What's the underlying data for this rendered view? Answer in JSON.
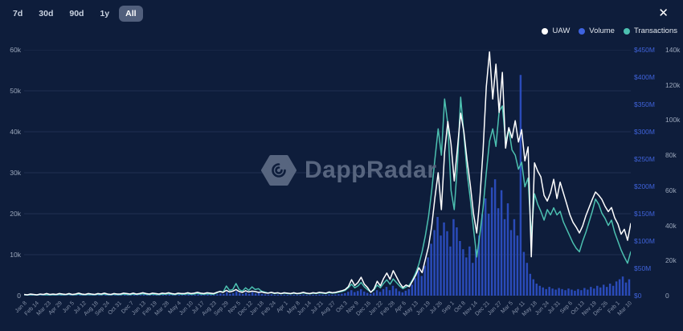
{
  "controls": {
    "ranges": [
      {
        "label": "7d",
        "selected": false
      },
      {
        "label": "30d",
        "selected": false
      },
      {
        "label": "90d",
        "selected": false
      },
      {
        "label": "1y",
        "selected": false
      },
      {
        "label": "All",
        "selected": true
      }
    ],
    "close_label": "✕"
  },
  "legend": {
    "items": [
      {
        "label": "UAW",
        "color": "#ffffff"
      },
      {
        "label": "Volume",
        "color": "#3e63e0"
      },
      {
        "label": "Transactions",
        "color": "#4cc0b0"
      }
    ]
  },
  "watermark": {
    "text": "DappRadar"
  },
  "colors": {
    "background": "#0e1d3b",
    "grid": "rgba(141,165,220,0.14)",
    "uaw_line": "#ffffff",
    "transactions_line": "#4cc0b0",
    "volume_bar": "#2c4fc4",
    "volume_axis_text": "#3f62d9",
    "axis_text": "#9aa6ba",
    "x_axis_text": "#8591a8"
  },
  "chart_data": {
    "type": "composite",
    "subtypes": [
      "bar",
      "line",
      "line"
    ],
    "x_labels": [
      "Jan 8",
      "Feb 14",
      "Mar 23",
      "Apr 29",
      "Jun 5",
      "Jul 12",
      "Aug 18",
      "Sep 24",
      "Oct 31",
      "Dec 7",
      "Jan 13",
      "Feb 19",
      "Mar 28",
      "May 4",
      "Jun 10",
      "Jul 17",
      "Aug 23",
      "Sep 29",
      "Nov 5",
      "Dec 12",
      "Jan 18",
      "Feb 24",
      "Apr 1",
      "May 8",
      "Jun 14",
      "Jul 21",
      "Aug 27",
      "Oct 3",
      "Nov 9",
      "Dec 16",
      "Jan 22",
      "Feb 28",
      "Apr 6",
      "May 13",
      "Jun 19",
      "Jul 26",
      "Sep 1",
      "Oct 8",
      "Nov 14",
      "Dec 21",
      "Jan 27",
      "Mar 5",
      "Apr 11",
      "May 18",
      "Jun 24",
      "Jul 31",
      "Sep 6",
      "Oct 13",
      "Nov 19",
      "Dec 26",
      "Feb 1",
      "Mar 10"
    ],
    "axes": {
      "left": {
        "name": "UAW",
        "ticks": [
          "0",
          "10k",
          "20k",
          "30k",
          "40k",
          "50k",
          "60k"
        ],
        "min": 0,
        "max": 60,
        "unit": "k users"
      },
      "right_volume": {
        "name": "Volume",
        "ticks": [
          "$0",
          "$50M",
          "$100M",
          "$150M",
          "$200M",
          "$250M",
          "$300M",
          "$350M",
          "$400M",
          "$450M"
        ],
        "min": 0,
        "max": 450,
        "unit": "$M"
      },
      "right_transactions": {
        "name": "Transactions",
        "ticks": [
          "0",
          "20k",
          "40k",
          "60k",
          "80k",
          "100k",
          "120k",
          "140k"
        ],
        "min": 0,
        "max": 140,
        "unit": "k tx"
      }
    },
    "grid": true,
    "legend_position": "top-right",
    "series": [
      {
        "name": "Volume",
        "type": "bar",
        "axis": "right_volume",
        "color": "#2c4fc4",
        "unit": "$M",
        "values": [
          0.5,
          0.3,
          0.8,
          0.5,
          0.4,
          1,
          0.6,
          0.8,
          0.5,
          0.7,
          0.6,
          1,
          0.7,
          0.5,
          1.2,
          0.6,
          0.8,
          1.4,
          0.8,
          0.6,
          1,
          0.7,
          0.5,
          1.2,
          0.8,
          1.5,
          0.8,
          0.6,
          1.2,
          0.8,
          0.8,
          1.5,
          1,
          0.8,
          1.6,
          1,
          1.2,
          2,
          1.2,
          0.8,
          1.4,
          1,
          0.8,
          1.6,
          1.2,
          2,
          1.2,
          0.9,
          1.6,
          1.2,
          1.2,
          2,
          1.3,
          1.5,
          2.4,
          1.5,
          1.2,
          2,
          1.5,
          1.3,
          2.5,
          4,
          3,
          6.5,
          3.5,
          4.5,
          8,
          4.5,
          3,
          6,
          3.5,
          6.5,
          4,
          5,
          3,
          2.5,
          2,
          2.5,
          1.6,
          2,
          1.4,
          1.8,
          1.5,
          1.2,
          1.8,
          1.4,
          1.5,
          2.2,
          1.5,
          1.2,
          1.8,
          1.5,
          2.2,
          1.8,
          1.5,
          2.5,
          1.8,
          2.2,
          2.8,
          3.5,
          4.5,
          7,
          10,
          6.5,
          8.5,
          12,
          7.5,
          5,
          3,
          5.5,
          10,
          7,
          12,
          16,
          10,
          18,
          13,
          8,
          6,
          9,
          12,
          20,
          32,
          45,
          36,
          55,
          70,
          95,
          120,
          144,
          110,
          134,
          118,
          90,
          140,
          125,
          100,
          85,
          70,
          90,
          60,
          85,
          110,
          149,
          178,
          150,
          198,
          213,
          160,
          193,
          140,
          169,
          120,
          140,
          110,
          404,
          80,
          60,
          40,
          30,
          22,
          18,
          15,
          12,
          16,
          13,
          11,
          14,
          12,
          10,
          13,
          11,
          9,
          12,
          10,
          14,
          11,
          16,
          13,
          18,
          15,
          20,
          16,
          22,
          18,
          26,
          30,
          35,
          24,
          30
        ]
      },
      {
        "name": "Transactions",
        "type": "line",
        "axis": "right_transactions",
        "color": "#4cc0b0",
        "unit": "k",
        "values": [
          0.5,
          0.4,
          0.6,
          0.5,
          0.4,
          0.7,
          0.5,
          0.6,
          0.4,
          0.6,
          0.5,
          0.7,
          0.5,
          0.6,
          0.8,
          0.5,
          0.6,
          0.9,
          0.6,
          0.5,
          0.7,
          0.6,
          0.5,
          0.8,
          0.6,
          0.9,
          0.6,
          0.5,
          0.8,
          0.6,
          0.6,
          0.9,
          0.7,
          0.6,
          0.9,
          0.7,
          0.8,
          1.1,
          0.8,
          0.6,
          0.9,
          0.7,
          0.6,
          0.9,
          0.8,
          1.1,
          0.8,
          0.6,
          1,
          0.8,
          0.8,
          1.1,
          0.8,
          0.9,
          1.3,
          0.9,
          0.8,
          1.1,
          0.9,
          0.8,
          1.5,
          2.5,
          2,
          5.5,
          3,
          3.5,
          6.9,
          3.5,
          2.5,
          4.5,
          3,
          5,
          3.5,
          4,
          2.5,
          2,
          1.5,
          1.8,
          1.2,
          1.5,
          1.1,
          1.4,
          1.2,
          1,
          1.4,
          1.1,
          1.2,
          1.6,
          1.2,
          1,
          1.4,
          1.2,
          1.6,
          1.4,
          1.2,
          1.8,
          1.4,
          1.6,
          2,
          2.4,
          3,
          4.5,
          6.5,
          4.5,
          5.5,
          7.5,
          5,
          3.5,
          2,
          3.2,
          6,
          4.5,
          7,
          9,
          6.5,
          9.5,
          7.5,
          5.5,
          4,
          5,
          6,
          9,
          13,
          18,
          25,
          34,
          45,
          60,
          78,
          95,
          80,
          112,
          98,
          60,
          49,
          75,
          113,
          92,
          70,
          55,
          38,
          22,
          35,
          50,
          70,
          88,
          95,
          85,
          105,
          108,
          88,
          95,
          83,
          80,
          72,
          76,
          62,
          67,
          34,
          58,
          52,
          48,
          43,
          49,
          46,
          50,
          46,
          48,
          42,
          38,
          34,
          30,
          27,
          25,
          31,
          36,
          42,
          48,
          55,
          52,
          47,
          44,
          40,
          43,
          36,
          31,
          26,
          22,
          18.5,
          25
        ]
      },
      {
        "name": "UAW",
        "type": "line",
        "axis": "left",
        "color": "#ffffff",
        "unit": "k",
        "values": [
          0.3,
          0.2,
          0.4,
          0.3,
          0.2,
          0.4,
          0.3,
          0.5,
          0.3,
          0.4,
          0.3,
          0.5,
          0.4,
          0.3,
          0.5,
          0.3,
          0.4,
          0.6,
          0.4,
          0.3,
          0.5,
          0.4,
          0.3,
          0.5,
          0.4,
          0.6,
          0.4,
          0.3,
          0.5,
          0.4,
          0.4,
          0.6,
          0.5,
          0.4,
          0.6,
          0.4,
          0.5,
          0.7,
          0.5,
          0.4,
          0.6,
          0.5,
          0.4,
          0.6,
          0.5,
          0.7,
          0.5,
          0.4,
          0.6,
          0.5,
          0.5,
          0.7,
          0.5,
          0.6,
          0.8,
          0.6,
          0.5,
          0.7,
          0.6,
          0.5,
          0.8,
          1,
          0.8,
          1.3,
          0.9,
          1.1,
          1.5,
          1,
          0.8,
          1.2,
          0.9,
          1.1,
          1,
          0.8,
          0.9,
          0.7,
          0.6,
          0.8,
          0.6,
          0.7,
          0.5,
          0.7,
          0.6,
          0.5,
          0.7,
          0.5,
          0.6,
          0.8,
          0.6,
          0.5,
          0.7,
          0.6,
          0.8,
          0.7,
          0.6,
          0.9,
          0.7,
          0.8,
          1,
          1.2,
          1.5,
          2.2,
          3.9,
          2.5,
          3.2,
          4.5,
          2.8,
          2,
          0.8,
          1.6,
          3.5,
          2.4,
          4.2,
          5.5,
          4,
          6.1,
          4.6,
          3.1,
          2,
          2.6,
          2.2,
          3.6,
          5,
          6.8,
          5.6,
          8.8,
          12,
          17,
          24,
          30,
          21,
          35,
          42.5,
          37,
          28,
          36,
          44.5,
          40,
          33,
          27,
          20,
          15.3,
          23.7,
          35.5,
          51,
          59.5,
          48,
          56.5,
          44.7,
          54.5,
          36,
          41,
          38.5,
          42.7,
          37.5,
          40.5,
          32.9,
          36.3,
          9.5,
          32.4,
          30.4,
          29,
          24.5,
          23.1,
          25.1,
          28.4,
          23.7,
          27.7,
          25.1,
          22.5,
          19.8,
          17.9,
          16.7,
          15.3,
          17,
          19.5,
          21.5,
          23.5,
          25.3,
          24.5,
          23.5,
          21.8,
          20.5,
          21.5,
          19,
          17.5,
          15,
          16.2,
          13.5,
          17.6
        ]
      }
    ]
  }
}
